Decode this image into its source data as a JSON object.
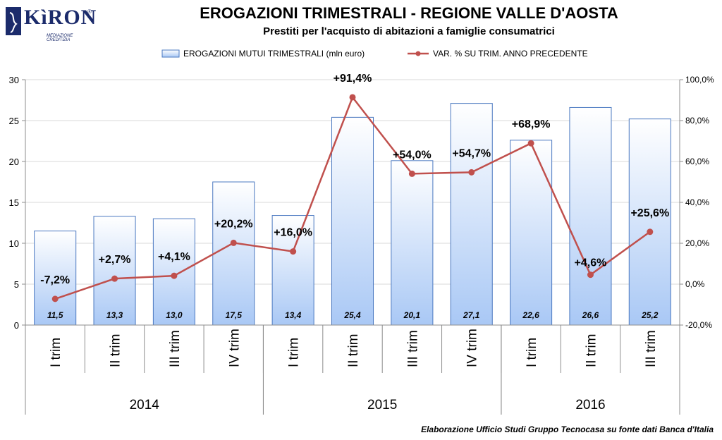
{
  "logo": {
    "name": "KìRON",
    "reg": "®",
    "sub": "MEDIAZIONE CREDITIZIA"
  },
  "header": {
    "title": "EROGAZIONI TRIMESTRALI - REGIONE VALLE D'AOSTA",
    "subtitle": "Prestiti per l'acquisto di abitazioni a famiglie consumatrici"
  },
  "footer": {
    "source": "Elaborazione Ufficio Studi Gruppo Tecnocasa su fonte dati Banca d'Italia"
  },
  "colors": {
    "bar_fill_top": "#ffffff",
    "bar_fill_bottom": "#a9c8f5",
    "bar_border": "#4a78c0",
    "line": "#c0504d",
    "grid": "#d9d9d9",
    "axis": "#8c8c8c"
  },
  "chart_data": {
    "type": "bar",
    "categories": [
      "I trim",
      "II trim",
      "III trim",
      "IV trim",
      "I trim",
      "II trim",
      "III trim",
      "IV trim",
      "I trim",
      "II trim",
      "III trim"
    ],
    "groups": [
      {
        "label": "2014",
        "count": 4
      },
      {
        "label": "2015",
        "count": 4
      },
      {
        "label": "2016",
        "count": 3
      }
    ],
    "series": [
      {
        "name": "EROGAZIONI MUTUI TRIMESTRALI (mln euro)",
        "type": "bar",
        "axis": "left",
        "values": [
          11.5,
          13.3,
          13.0,
          17.5,
          13.4,
          25.4,
          20.1,
          27.1,
          22.6,
          26.6,
          25.2
        ],
        "labels": [
          "11,5",
          "13,3",
          "13,0",
          "17,5",
          "13,4",
          "25,4",
          "20,1",
          "27,1",
          "22,6",
          "26,6",
          "25,2"
        ]
      },
      {
        "name": "VAR. % SU TRIM. ANNO PRECEDENTE",
        "type": "line",
        "axis": "right",
        "values": [
          -7.2,
          2.7,
          4.1,
          20.2,
          16.0,
          91.4,
          54.0,
          54.7,
          68.9,
          4.6,
          25.6
        ],
        "labels": [
          "-7,2%",
          "+2,7%",
          "+4,1%",
          "+20,2%",
          "+16,0%",
          "+91,4%",
          "+54,0%",
          "+54,7%",
          "+68,9%",
          "+4,6%",
          "+25,6%"
        ]
      }
    ],
    "y_left": {
      "lim": [
        0,
        30
      ],
      "ticks": [
        "0",
        "5",
        "10",
        "15",
        "20",
        "25",
        "30"
      ],
      "tick_values": [
        0,
        5,
        10,
        15,
        20,
        25,
        30
      ]
    },
    "y_right": {
      "lim": [
        -20,
        100
      ],
      "ticks": [
        "-20,0%",
        "0,0%",
        "20,0%",
        "40,0%",
        "60,0%",
        "80,0%",
        "100,0%"
      ],
      "tick_values": [
        -20,
        0,
        20,
        40,
        60,
        80,
        100
      ]
    },
    "grid": true,
    "legend": "top-center"
  }
}
